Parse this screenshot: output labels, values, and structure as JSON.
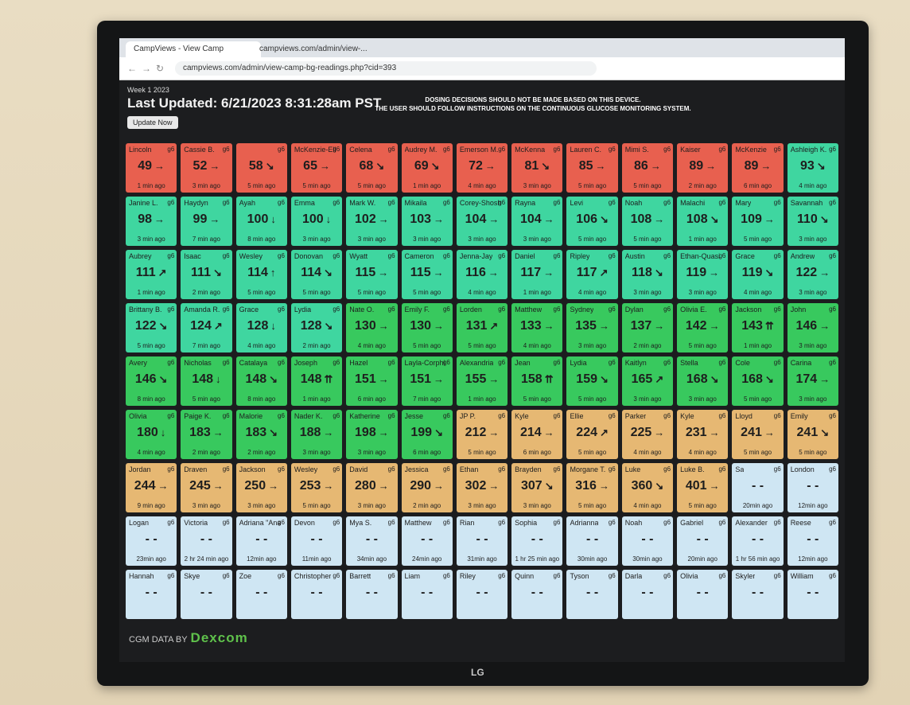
{
  "browser": {
    "tabs": [
      "CampViews - View Camp",
      "campviews.com/admin/view-..."
    ],
    "url": "campviews.com/admin/view-camp-bg-readings.php?cid=393"
  },
  "header": {
    "week": "Week 1 2023",
    "updated": "Last Updated: 6/21/2023 8:31:28am PST",
    "button": "Update Now",
    "warning": [
      "DOSING DECISIONS SHOULD NOT BE MADE BASED ON THIS DEVICE.",
      "THE USER SHOULD FOLLOW INSTRUCTIONS ON THE CONTINUOUS GLUCOSE MONITORING SYSTEM."
    ]
  },
  "status_colors": {
    "low": "#e8604f",
    "target": "#3fd6a0",
    "elevated": "#38c95e",
    "high": "#e6b873",
    "none": "#cfe6f3"
  },
  "device_label": "g6",
  "tiles": [
    {
      "name": "Lincoln",
      "value": 49,
      "trend": "→",
      "ago": "1 min ago",
      "status": "low"
    },
    {
      "name": "Cassie B.",
      "value": 52,
      "trend": "→",
      "ago": "3 min ago",
      "status": "low"
    },
    {
      "name": null,
      "value": 58,
      "trend": "↘",
      "ago": "5 min ago",
      "status": "low"
    },
    {
      "name": "McKenzie-Elk",
      "value": 65,
      "trend": "→",
      "ago": "5 min ago",
      "status": "low"
    },
    {
      "name": "Celena",
      "value": 68,
      "trend": "↘",
      "ago": "5 min ago",
      "status": "low"
    },
    {
      "name": "Audrey M.",
      "value": 69,
      "trend": "↘",
      "ago": "1 min ago",
      "status": "low"
    },
    {
      "name": "Emerson M.",
      "value": 72,
      "trend": "→",
      "ago": "4 min ago",
      "status": "low"
    },
    {
      "name": "McKenna",
      "value": 81,
      "trend": "↘",
      "ago": "3 min ago",
      "status": "low"
    },
    {
      "name": "Lauren C.",
      "value": 85,
      "trend": "→",
      "ago": "5 min ago",
      "status": "low"
    },
    {
      "name": "Mimi S.",
      "value": 86,
      "trend": "→",
      "ago": "5 min ago",
      "status": "low"
    },
    {
      "name": "Kaiser",
      "value": 89,
      "trend": "→",
      "ago": "2 min ago",
      "status": "low"
    },
    {
      "name": "McKenzie",
      "value": 89,
      "trend": "→",
      "ago": "6 min ago",
      "status": "low"
    },
    {
      "name": "Ashleigh K.",
      "value": 93,
      "trend": "↘",
      "ago": "4 min ago",
      "status": "target"
    },
    {
      "name": "Janine L.",
      "value": 98,
      "trend": "→",
      "ago": "3 min ago",
      "status": "target"
    },
    {
      "name": "Haydyn",
      "value": 99,
      "trend": "→",
      "ago": "7 min ago",
      "status": "target"
    },
    {
      "name": "Ayah",
      "value": 100,
      "trend": "↓",
      "ago": "8 min ago",
      "status": "target"
    },
    {
      "name": "Emma",
      "value": 100,
      "trend": "↓",
      "ago": "3 min ago",
      "status": "target"
    },
    {
      "name": "Mark W.",
      "value": 102,
      "trend": "→",
      "ago": "3 min ago",
      "status": "target"
    },
    {
      "name": "Mikaila",
      "value": 103,
      "trend": "→",
      "ago": "3 min ago",
      "status": "target"
    },
    {
      "name": "Corey-Shoshe",
      "value": 104,
      "trend": "→",
      "ago": "3 min ago",
      "status": "target"
    },
    {
      "name": "Rayna",
      "value": 104,
      "trend": "→",
      "ago": "3 min ago",
      "status": "target"
    },
    {
      "name": "Levi",
      "value": 106,
      "trend": "↘",
      "ago": "5 min ago",
      "status": "target"
    },
    {
      "name": "Noah",
      "value": 108,
      "trend": "→",
      "ago": "5 min ago",
      "status": "target"
    },
    {
      "name": "Malachi",
      "value": 108,
      "trend": "↘",
      "ago": "1 min ago",
      "status": "target"
    },
    {
      "name": "Mary",
      "value": 109,
      "trend": "→",
      "ago": "5 min ago",
      "status": "target"
    },
    {
      "name": "Savannah",
      "value": 110,
      "trend": "↘",
      "ago": "3 min ago",
      "status": "target"
    },
    {
      "name": "Aubrey",
      "value": 111,
      "trend": "↗",
      "ago": "1 min ago",
      "status": "target"
    },
    {
      "name": "Isaac",
      "value": 111,
      "trend": "↘",
      "ago": "2 min ago",
      "status": "target"
    },
    {
      "name": "Wesley",
      "value": 114,
      "trend": "↑",
      "ago": "5 min ago",
      "status": "target"
    },
    {
      "name": "Donovan",
      "value": 114,
      "trend": "↘",
      "ago": "5 min ago",
      "status": "target"
    },
    {
      "name": "Wyatt",
      "value": 115,
      "trend": "→",
      "ago": "5 min ago",
      "status": "target"
    },
    {
      "name": "Cameron",
      "value": 115,
      "trend": "→",
      "ago": "5 min ago",
      "status": "target"
    },
    {
      "name": "Jenna-Jay",
      "value": 116,
      "trend": "→",
      "ago": "4 min ago",
      "status": "target"
    },
    {
      "name": "Daniel",
      "value": 117,
      "trend": "→",
      "ago": "1 min ago",
      "status": "target"
    },
    {
      "name": "Ripley",
      "value": 117,
      "trend": "↗",
      "ago": "4 min ago",
      "status": "target"
    },
    {
      "name": "Austin",
      "value": 118,
      "trend": "↘",
      "ago": "3 min ago",
      "status": "target"
    },
    {
      "name": "Ethan-Quasi",
      "value": 119,
      "trend": "→",
      "ago": "3 min ago",
      "status": "target"
    },
    {
      "name": "Grace",
      "value": 119,
      "trend": "↘",
      "ago": "4 min ago",
      "status": "target"
    },
    {
      "name": "Andrew",
      "value": 122,
      "trend": "→",
      "ago": "3 min ago",
      "status": "target"
    },
    {
      "name": "Brittany B.",
      "value": 122,
      "trend": "↘",
      "ago": "5 min ago",
      "status": "target"
    },
    {
      "name": "Amanda R.",
      "value": 124,
      "trend": "↗",
      "ago": "7 min ago",
      "status": "target"
    },
    {
      "name": "Grace",
      "value": 128,
      "trend": "↓",
      "ago": "4 min ago",
      "status": "target"
    },
    {
      "name": "Lydia",
      "value": 128,
      "trend": "↘",
      "ago": "2 min ago",
      "status": "target"
    },
    {
      "name": "Nate O.",
      "value": 130,
      "trend": "→",
      "ago": "4 min ago",
      "status": "elevated"
    },
    {
      "name": "Emily F.",
      "value": 130,
      "trend": "→",
      "ago": "5 min ago",
      "status": "elevated"
    },
    {
      "name": "Lorden",
      "value": 131,
      "trend": "↗",
      "ago": "5 min ago",
      "status": "elevated"
    },
    {
      "name": "Matthew",
      "value": 133,
      "trend": "→",
      "ago": "4 min ago",
      "status": "elevated"
    },
    {
      "name": "Sydney",
      "value": 135,
      "trend": "→",
      "ago": "3 min ago",
      "status": "elevated"
    },
    {
      "name": "Dylan",
      "value": 137,
      "trend": "→",
      "ago": "2 min ago",
      "status": "elevated"
    },
    {
      "name": "Olivia E.",
      "value": 142,
      "trend": "→",
      "ago": "5 min ago",
      "status": "elevated"
    },
    {
      "name": "Jackson",
      "value": 143,
      "trend": "⇈",
      "ago": "1 min ago",
      "status": "elevated"
    },
    {
      "name": "John",
      "value": 146,
      "trend": "→",
      "ago": "3 min ago",
      "status": "elevated"
    },
    {
      "name": "Avery",
      "value": 146,
      "trend": "↘",
      "ago": "8 min ago",
      "status": "elevated"
    },
    {
      "name": "Nicholas",
      "value": 148,
      "trend": "↓",
      "ago": "5 min ago",
      "status": "elevated"
    },
    {
      "name": "Catalaya",
      "value": 148,
      "trend": "↘",
      "ago": "8 min ago",
      "status": "elevated"
    },
    {
      "name": "Joseph",
      "value": 148,
      "trend": "⇈",
      "ago": "1 min ago",
      "status": "elevated"
    },
    {
      "name": "Hazel",
      "value": 151,
      "trend": "→",
      "ago": "6 min ago",
      "status": "elevated"
    },
    {
      "name": "Layla-Corphi",
      "value": 151,
      "trend": "→",
      "ago": "7 min ago",
      "status": "elevated"
    },
    {
      "name": "Alexandria",
      "value": 155,
      "trend": "→",
      "ago": "1 min ago",
      "status": "elevated"
    },
    {
      "name": "Jean",
      "value": 158,
      "trend": "⇈",
      "ago": "5 min ago",
      "status": "elevated"
    },
    {
      "name": "Lydia",
      "value": 159,
      "trend": "↘",
      "ago": "5 min ago",
      "status": "elevated"
    },
    {
      "name": "Kaitlyn",
      "value": 165,
      "trend": "↗",
      "ago": "3 min ago",
      "status": "elevated"
    },
    {
      "name": "Stella",
      "value": 168,
      "trend": "↘",
      "ago": "3 min ago",
      "status": "elevated"
    },
    {
      "name": "Cole",
      "value": 168,
      "trend": "↘",
      "ago": "5 min ago",
      "status": "elevated"
    },
    {
      "name": "Carina",
      "value": 174,
      "trend": "→",
      "ago": "3 min ago",
      "status": "elevated"
    },
    {
      "name": "Olivia",
      "value": 180,
      "trend": "↓",
      "ago": "4 min ago",
      "status": "elevated"
    },
    {
      "name": "Paige K.",
      "value": 183,
      "trend": "→",
      "ago": "2 min ago",
      "status": "elevated"
    },
    {
      "name": "Malorie",
      "value": 183,
      "trend": "↘",
      "ago": "2 min ago",
      "status": "elevated"
    },
    {
      "name": "Nader K.",
      "value": 188,
      "trend": "→",
      "ago": "3 min ago",
      "status": "elevated"
    },
    {
      "name": "Katherine",
      "value": 198,
      "trend": "→",
      "ago": "3 min ago",
      "status": "elevated"
    },
    {
      "name": "Jesse",
      "value": 199,
      "trend": "↘",
      "ago": "6 min ago",
      "status": "elevated"
    },
    {
      "name": "JP P.",
      "value": 212,
      "trend": "→",
      "ago": "5 min ago",
      "status": "high"
    },
    {
      "name": "Kyle",
      "value": 214,
      "trend": "→",
      "ago": "6 min ago",
      "status": "high"
    },
    {
      "name": "Ellie",
      "value": 224,
      "trend": "↗",
      "ago": "5 min ago",
      "status": "high"
    },
    {
      "name": "Parker",
      "value": 225,
      "trend": "→",
      "ago": "4 min ago",
      "status": "high"
    },
    {
      "name": "Kyle",
      "value": 231,
      "trend": "→",
      "ago": "4 min ago",
      "status": "high"
    },
    {
      "name": "Lloyd",
      "value": 241,
      "trend": "→",
      "ago": "5 min ago",
      "status": "high"
    },
    {
      "name": "Emily",
      "value": 241,
      "trend": "↘",
      "ago": "5 min ago",
      "status": "high"
    },
    {
      "name": "Jordan",
      "value": 244,
      "trend": "→",
      "ago": "9 min ago",
      "status": "high"
    },
    {
      "name": "Draven",
      "value": 245,
      "trend": "→",
      "ago": "3 min ago",
      "status": "high"
    },
    {
      "name": "Jackson",
      "value": 250,
      "trend": "→",
      "ago": "3 min ago",
      "status": "high"
    },
    {
      "name": "Wesley",
      "value": 253,
      "trend": "→",
      "ago": "5 min ago",
      "status": "high"
    },
    {
      "name": "David",
      "value": 280,
      "trend": "→",
      "ago": "3 min ago",
      "status": "high"
    },
    {
      "name": "Jessica",
      "value": 290,
      "trend": "→",
      "ago": "2 min ago",
      "status": "high"
    },
    {
      "name": "Ethan",
      "value": 302,
      "trend": "→",
      "ago": "3 min ago",
      "status": "high"
    },
    {
      "name": "Brayden",
      "value": 307,
      "trend": "↘",
      "ago": "3 min ago",
      "status": "high"
    },
    {
      "name": "Morgane T.",
      "value": 316,
      "trend": "→",
      "ago": "5 min ago",
      "status": "high"
    },
    {
      "name": "Luke",
      "value": 360,
      "trend": "↘",
      "ago": "4 min ago",
      "status": "high"
    },
    {
      "name": "Luke B.",
      "value": 401,
      "trend": "→",
      "ago": "5 min ago",
      "status": "high"
    },
    {
      "name": "Sa",
      "value": "- -",
      "trend": null,
      "ago": "20min ago",
      "status": "none"
    },
    {
      "name": "London",
      "value": "- -",
      "trend": null,
      "ago": "12min ago",
      "status": "none"
    },
    {
      "name": "Logan",
      "value": "- -",
      "trend": null,
      "ago": "23min ago",
      "status": "none"
    },
    {
      "name": "Victoria",
      "value": "- -",
      "trend": null,
      "ago": "2 hr 24 min ago",
      "status": "none"
    },
    {
      "name": "Adriana \"Ana\"",
      "value": "- -",
      "trend": null,
      "ago": "12min ago",
      "status": "none"
    },
    {
      "name": "Devon",
      "value": "- -",
      "trend": null,
      "ago": "11min ago",
      "status": "none"
    },
    {
      "name": "Mya S.",
      "value": "- -",
      "trend": null,
      "ago": "34min ago",
      "status": "none"
    },
    {
      "name": "Matthew",
      "value": "- -",
      "trend": null,
      "ago": "24min ago",
      "status": "none"
    },
    {
      "name": "Rian",
      "value": "- -",
      "trend": null,
      "ago": "31min ago",
      "status": "none"
    },
    {
      "name": "Sophia",
      "value": "- -",
      "trend": null,
      "ago": "1 hr 25 min ago",
      "status": "none"
    },
    {
      "name": "Adrianna",
      "value": "- -",
      "trend": null,
      "ago": "30min ago",
      "status": "none"
    },
    {
      "name": "Noah",
      "value": "- -",
      "trend": null,
      "ago": "30min ago",
      "status": "none"
    },
    {
      "name": "Gabriel",
      "value": "- -",
      "trend": null,
      "ago": "20min ago",
      "status": "none"
    },
    {
      "name": "Alexander",
      "value": "- -",
      "trend": null,
      "ago": "1 hr 56 min ago",
      "status": "none"
    },
    {
      "name": "Reese",
      "value": "- -",
      "trend": null,
      "ago": "12min ago",
      "status": "none"
    },
    {
      "name": "Hannah",
      "value": "- -",
      "trend": null,
      "ago": null,
      "status": "none"
    },
    {
      "name": "Skye",
      "value": "- -",
      "trend": null,
      "ago": null,
      "status": "none"
    },
    {
      "name": "Zoe",
      "value": "- -",
      "trend": null,
      "ago": null,
      "status": "none"
    },
    {
      "name": "Christopher",
      "value": "- -",
      "trend": null,
      "ago": null,
      "status": "none"
    },
    {
      "name": "Barrett",
      "value": "- -",
      "trend": null,
      "ago": null,
      "status": "none"
    },
    {
      "name": "Liam",
      "value": "- -",
      "trend": null,
      "ago": null,
      "status": "none"
    },
    {
      "name": "Riley",
      "value": "- -",
      "trend": null,
      "ago": null,
      "status": "none"
    },
    {
      "name": "Quinn",
      "value": "- -",
      "trend": null,
      "ago": null,
      "status": "none"
    },
    {
      "name": "Tyson",
      "value": "- -",
      "trend": null,
      "ago": null,
      "status": "none"
    },
    {
      "name": "Darla",
      "value": "- -",
      "trend": null,
      "ago": null,
      "status": "none"
    },
    {
      "name": "Olivia",
      "value": "- -",
      "trend": null,
      "ago": null,
      "status": "none"
    },
    {
      "name": "Skyler",
      "value": "- -",
      "trend": null,
      "ago": null,
      "status": "none"
    },
    {
      "name": "William",
      "value": "- -",
      "trend": null,
      "ago": null,
      "status": "none"
    }
  ],
  "footer": {
    "credit": "CGM DATA BY",
    "brand": "Dexcom"
  },
  "tv": {
    "brand": "LG"
  }
}
